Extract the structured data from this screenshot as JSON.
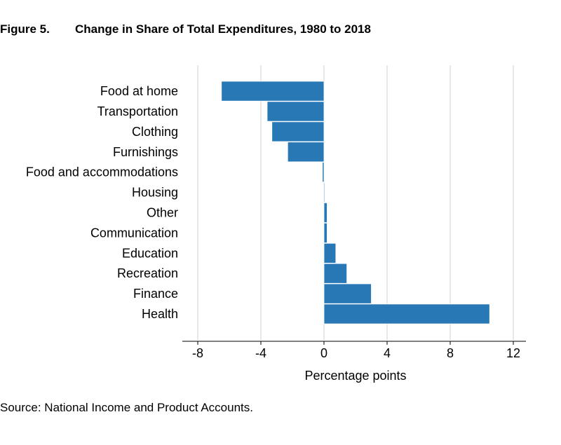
{
  "figure": {
    "number": "Figure 5.",
    "title": "Change in Share of Total Expenditures, 1980 to 2018",
    "source": "Source: National Income and Product Accounts."
  },
  "chart_data": {
    "type": "bar",
    "orientation": "horizontal",
    "categories": [
      "Food at home",
      "Transportation",
      "Clothing",
      "Furnishings",
      "Food and accommodations",
      "Housing",
      "Other",
      "Communication",
      "Education",
      "Recreation",
      "Finance",
      "Health"
    ],
    "values": [
      -6.5,
      -3.6,
      -3.3,
      -2.3,
      -0.1,
      0.05,
      0.2,
      0.2,
      0.75,
      1.45,
      3.0,
      10.5
    ],
    "xlabel": "Percentage points",
    "ylabel": "",
    "xlim": [
      -8,
      12
    ],
    "xticks": [
      -8,
      -4,
      0,
      4,
      8,
      12
    ],
    "xtick_labels": [
      "-8",
      "-4",
      "0",
      "4",
      "8",
      "12"
    ],
    "grid": "vertical",
    "bar_color": "#2878b5"
  }
}
